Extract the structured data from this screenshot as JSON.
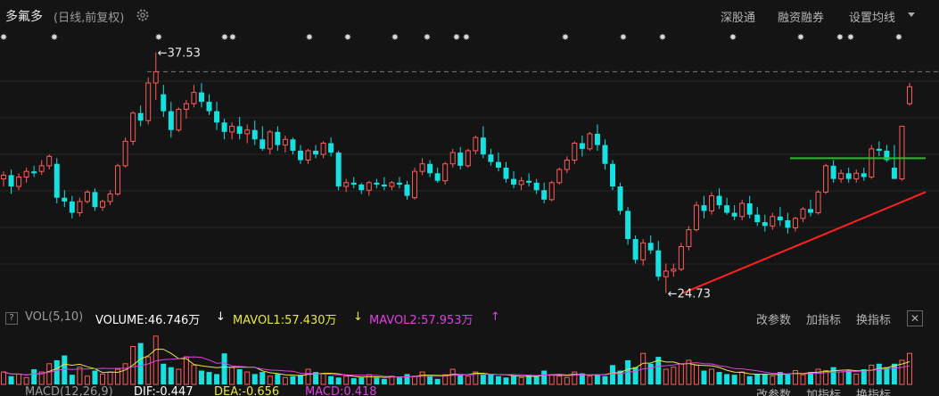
{
  "header": {
    "stock_name": "多氟多",
    "period_label": "(日线,前复权)",
    "links": [
      "深股通",
      "融资融券",
      "设置均线"
    ]
  },
  "chart_annotations": {
    "high_label": "37.53",
    "low_label": "24.73"
  },
  "chart_data": {
    "type": "candlestick",
    "high": 37.53,
    "low": 24.73,
    "ohlc": [
      [
        30.8,
        31.2,
        30.4,
        31.0
      ],
      [
        31.0,
        31.3,
        30.0,
        30.4
      ],
      [
        30.4,
        31.1,
        30.2,
        30.9
      ],
      [
        30.9,
        31.4,
        30.6,
        31.2
      ],
      [
        31.2,
        31.5,
        30.9,
        31.1
      ],
      [
        31.2,
        31.8,
        31.0,
        31.5
      ],
      [
        31.5,
        32.1,
        31.3,
        32.0
      ],
      [
        31.6,
        31.9,
        29.5,
        29.8
      ],
      [
        29.8,
        30.2,
        29.3,
        29.6
      ],
      [
        29.6,
        29.9,
        28.7,
        29.0
      ],
      [
        29.0,
        29.8,
        28.8,
        29.6
      ],
      [
        29.6,
        30.2,
        29.5,
        30.1
      ],
      [
        30.1,
        30.3,
        29.1,
        29.3
      ],
      [
        29.3,
        29.7,
        29.1,
        29.6
      ],
      [
        29.6,
        30.2,
        29.4,
        30.0
      ],
      [
        30.0,
        31.6,
        29.9,
        31.5
      ],
      [
        31.5,
        33.0,
        31.4,
        32.8
      ],
      [
        32.8,
        34.4,
        32.6,
        34.3
      ],
      [
        34.3,
        34.7,
        33.6,
        33.9
      ],
      [
        33.9,
        36.2,
        33.7,
        35.9
      ],
      [
        35.9,
        37.53,
        35.0,
        36.5
      ],
      [
        35.3,
        35.8,
        34.1,
        34.4
      ],
      [
        34.4,
        34.9,
        33.0,
        33.4
      ],
      [
        33.4,
        34.6,
        33.3,
        34.5
      ],
      [
        34.5,
        35.0,
        34.0,
        34.8
      ],
      [
        34.8,
        35.8,
        34.6,
        35.4
      ],
      [
        35.4,
        35.9,
        34.6,
        34.9
      ],
      [
        34.9,
        35.3,
        34.2,
        34.4
      ],
      [
        34.4,
        34.9,
        33.4,
        33.8
      ],
      [
        33.8,
        34.0,
        32.9,
        33.3
      ],
      [
        33.3,
        33.8,
        32.9,
        33.6
      ],
      [
        33.6,
        34.1,
        32.9,
        33.2
      ],
      [
        33.2,
        33.7,
        32.7,
        33.4
      ],
      [
        33.4,
        33.9,
        32.6,
        32.9
      ],
      [
        32.9,
        33.6,
        32.3,
        32.4
      ],
      [
        32.4,
        33.4,
        32.1,
        33.3
      ],
      [
        33.3,
        33.6,
        32.3,
        32.6
      ],
      [
        32.6,
        33.1,
        32.2,
        32.9
      ],
      [
        32.9,
        33.0,
        32.1,
        32.3
      ],
      [
        32.3,
        32.6,
        31.6,
        31.8
      ],
      [
        31.8,
        32.4,
        31.6,
        32.3
      ],
      [
        32.3,
        32.6,
        31.9,
        32.1
      ],
      [
        32.1,
        32.8,
        31.9,
        32.7
      ],
      [
        32.7,
        33.0,
        32.0,
        32.2
      ],
      [
        32.2,
        32.3,
        30.2,
        30.4
      ],
      [
        30.4,
        30.8,
        30.1,
        30.6
      ],
      [
        30.6,
        30.9,
        30.3,
        30.5
      ],
      [
        30.5,
        30.6,
        30.0,
        30.2
      ],
      [
        30.2,
        30.7,
        29.9,
        30.6
      ],
      [
        30.6,
        30.8,
        30.3,
        30.5
      ],
      [
        30.5,
        30.9,
        30.2,
        30.4
      ],
      [
        30.4,
        30.7,
        30.2,
        30.6
      ],
      [
        30.6,
        30.9,
        30.3,
        30.5
      ],
      [
        30.5,
        30.7,
        29.7,
        29.9
      ],
      [
        29.8,
        31.4,
        29.7,
        31.2
      ],
      [
        31.2,
        31.9,
        31.0,
        31.6
      ],
      [
        31.6,
        31.8,
        30.9,
        31.1
      ],
      [
        31.1,
        31.4,
        30.6,
        30.7
      ],
      [
        30.7,
        31.7,
        30.5,
        31.6
      ],
      [
        31.6,
        32.4,
        31.4,
        32.2
      ],
      [
        32.2,
        32.5,
        31.3,
        31.5
      ],
      [
        31.5,
        32.4,
        31.4,
        32.3
      ],
      [
        32.3,
        33.1,
        32.1,
        33.0
      ],
      [
        33.0,
        33.6,
        31.9,
        32.1
      ],
      [
        32.1,
        32.4,
        31.5,
        31.7
      ],
      [
        31.7,
        32.2,
        31.2,
        31.4
      ],
      [
        31.4,
        31.7,
        30.6,
        30.8
      ],
      [
        30.8,
        31.2,
        30.3,
        30.5
      ],
      [
        30.5,
        30.9,
        30.2,
        30.7
      ],
      [
        30.7,
        31.1,
        30.4,
        30.6
      ],
      [
        30.6,
        30.8,
        30.0,
        30.2
      ],
      [
        30.2,
        30.6,
        29.5,
        29.7
      ],
      [
        29.7,
        30.7,
        29.6,
        30.6
      ],
      [
        30.6,
        31.4,
        30.5,
        31.3
      ],
      [
        31.3,
        32.0,
        31.1,
        31.8
      ],
      [
        31.8,
        32.8,
        31.6,
        32.7
      ],
      [
        32.7,
        33.1,
        32.0,
        32.4
      ],
      [
        32.4,
        33.3,
        32.3,
        33.2
      ],
      [
        33.2,
        33.7,
        32.3,
        32.6
      ],
      [
        32.6,
        32.9,
        31.3,
        31.6
      ],
      [
        31.6,
        31.8,
        30.2,
        30.4
      ],
      [
        30.4,
        30.6,
        28.9,
        29.1
      ],
      [
        29.1,
        29.3,
        27.3,
        27.6
      ],
      [
        27.6,
        27.8,
        26.3,
        26.5
      ],
      [
        26.5,
        27.6,
        26.2,
        27.4
      ],
      [
        27.4,
        27.8,
        26.8,
        27.0
      ],
      [
        27.0,
        27.5,
        25.4,
        25.6
      ],
      [
        25.6,
        26.3,
        24.73,
        25.9
      ],
      [
        25.9,
        26.3,
        25.6,
        26.0
      ],
      [
        26.0,
        27.4,
        25.9,
        27.2
      ],
      [
        27.2,
        28.3,
        27.0,
        28.1
      ],
      [
        28.1,
        29.6,
        28.0,
        29.4
      ],
      [
        29.4,
        29.9,
        28.7,
        29.1
      ],
      [
        29.1,
        30.1,
        28.9,
        29.9
      ],
      [
        29.9,
        30.3,
        29.2,
        29.4
      ],
      [
        29.4,
        29.8,
        28.9,
        29.0
      ],
      [
        29.0,
        29.4,
        28.6,
        28.8
      ],
      [
        28.8,
        29.7,
        28.6,
        29.5
      ],
      [
        29.5,
        29.9,
        28.7,
        28.9
      ],
      [
        28.9,
        29.3,
        28.3,
        28.5
      ],
      [
        28.5,
        28.9,
        28.0,
        28.3
      ],
      [
        28.3,
        29.0,
        28.1,
        28.8
      ],
      [
        28.8,
        29.3,
        28.3,
        28.6
      ],
      [
        28.6,
        29.0,
        27.9,
        28.2
      ],
      [
        28.2,
        28.8,
        28.0,
        28.7
      ],
      [
        28.7,
        29.3,
        28.5,
        29.2
      ],
      [
        29.2,
        29.7,
        28.8,
        29.0
      ],
      [
        29.0,
        30.2,
        28.9,
        30.1
      ],
      [
        30.1,
        31.6,
        30.0,
        31.5
      ],
      [
        31.5,
        31.8,
        30.6,
        30.8
      ],
      [
        30.8,
        31.3,
        30.6,
        31.1
      ],
      [
        31.1,
        31.4,
        30.6,
        30.8
      ],
      [
        30.8,
        31.3,
        30.6,
        31.1
      ],
      [
        31.1,
        31.4,
        30.7,
        30.9
      ],
      [
        30.9,
        32.6,
        30.8,
        32.4
      ],
      [
        32.4,
        32.8,
        32.0,
        32.3
      ],
      [
        32.3,
        32.6,
        31.7,
        31.8
      ],
      [
        31.4,
        32.6,
        30.8,
        30.8
      ],
      [
        30.8,
        33.6,
        30.7,
        33.6
      ],
      [
        34.8,
        35.9,
        34.7,
        35.7
      ]
    ],
    "volume": [
      18,
      12,
      15,
      10,
      22,
      18,
      30,
      35,
      42,
      14,
      25,
      12,
      20,
      15,
      18,
      22,
      30,
      55,
      60,
      40,
      70,
      30,
      25,
      22,
      40,
      28,
      20,
      18,
      15,
      45,
      25,
      22,
      18,
      15,
      18,
      12,
      15,
      10,
      12,
      14,
      22,
      18,
      15,
      12,
      10,
      12,
      9,
      10,
      14,
      10,
      8,
      12,
      10,
      15,
      12,
      18,
      12,
      8,
      14,
      22,
      15,
      12,
      18,
      14,
      15,
      12,
      10,
      12,
      10,
      14,
      12,
      20,
      14,
      12,
      10,
      18,
      16,
      12,
      14,
      12,
      28,
      20,
      35,
      25,
      45,
      30,
      40,
      22,
      25,
      30,
      35,
      28,
      20,
      22,
      18,
      15,
      14,
      18,
      12,
      15,
      15,
      12,
      18,
      15,
      20,
      14,
      18,
      22,
      20,
      25,
      18,
      20,
      15,
      22,
      28,
      30,
      25,
      30,
      35,
      45
    ],
    "mavol_lines": [
      "MAVOL1",
      "MAVOL2"
    ]
  },
  "vol_panel": {
    "indicator_label": "VOL(5,10)",
    "volume_value": "VOLUME:46.746万",
    "mavol1": "MAVOL1:57.430万",
    "mavol2": "MAVOL2:57.953万",
    "arrow_down": "↓",
    "arrow_up": "↑",
    "actions": [
      "改参数",
      "加指标",
      "换指标"
    ],
    "close": "✕",
    "question": "?"
  },
  "macd_panel": {
    "label": "MACD(12,26,9)",
    "dif": "DIF:-0.447",
    "dea": "DEA:-0.656",
    "macd": "MACD:0.418",
    "actions": [
      "改参数",
      "加指标",
      "换指标"
    ]
  },
  "colors": {
    "up": "#ff5b5b",
    "down": "#17e0e0",
    "hline_green": "#22c022",
    "trend_red": "#ff2020",
    "mavol1": "#e8e840",
    "mavol2": "#e040e0",
    "highlight_volume": "#ffffff"
  },
  "icons": [
    "gear-icon",
    "caret-down-icon",
    "event-marker-icon"
  ]
}
